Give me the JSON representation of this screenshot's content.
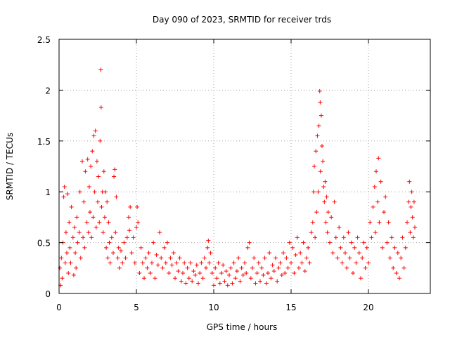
{
  "chart_data": {
    "type": "scatter",
    "title": "Day 090 of 2023, SRMTID for receiver trds",
    "xlabel": "GPS time / hours",
    "ylabel": "SRMTID / TECUs",
    "xlim": [
      0,
      24
    ],
    "ylim": [
      0,
      2.5
    ],
    "xticks": [
      0,
      5,
      10,
      15,
      20
    ],
    "xtick_labels": [
      "0",
      "5",
      "10",
      "15",
      "20"
    ],
    "yticks": [
      0,
      0.5,
      1,
      1.5,
      2,
      2.5
    ],
    "ytick_labels": [
      "0",
      "0.5",
      "1",
      "1.5",
      "2",
      "2.5"
    ],
    "grid": true,
    "marker": "+",
    "color": "#ff0000",
    "series": [
      {
        "name": "SRMTID",
        "points": [
          [
            0.05,
            0.25
          ],
          [
            0.1,
            0.08
          ],
          [
            0.15,
            0.35
          ],
          [
            0.2,
            0.15
          ],
          [
            0.25,
            0.5
          ],
          [
            0.3,
            0.95
          ],
          [
            0.35,
            1.05
          ],
          [
            0.4,
            0.3
          ],
          [
            0.45,
            0.6
          ],
          [
            0.5,
            0.4
          ],
          [
            0.55,
            0.98
          ],
          [
            0.6,
            0.2
          ],
          [
            0.65,
            0.7
          ],
          [
            0.7,
            0.45
          ],
          [
            0.75,
            0.3
          ],
          [
            0.8,
            0.85
          ],
          [
            0.9,
            0.55
          ],
          [
            0.95,
            0.18
          ],
          [
            1.0,
            0.65
          ],
          [
            1.05,
            0.4
          ],
          [
            1.1,
            0.25
          ],
          [
            1.15,
            0.75
          ],
          [
            1.2,
            0.5
          ],
          [
            1.3,
            0.6
          ],
          [
            1.35,
            1.0
          ],
          [
            1.4,
            0.35
          ],
          [
            1.5,
            1.3
          ],
          [
            1.55,
            0.55
          ],
          [
            1.6,
            0.9
          ],
          [
            1.65,
            0.45
          ],
          [
            1.7,
            1.2
          ],
          [
            1.8,
            0.7
          ],
          [
            1.85,
            1.32
          ],
          [
            1.9,
            0.6
          ],
          [
            1.95,
            1.05
          ],
          [
            2.0,
            0.8
          ],
          [
            2.05,
            1.25
          ],
          [
            2.1,
            0.55
          ],
          [
            2.15,
            1.4
          ],
          [
            2.2,
            0.75
          ],
          [
            2.25,
            1.55
          ],
          [
            2.3,
            1.0
          ],
          [
            2.35,
            1.6
          ],
          [
            2.4,
            0.65
          ],
          [
            2.45,
            1.3
          ],
          [
            2.5,
            0.9
          ],
          [
            2.55,
            1.15
          ],
          [
            2.6,
            0.7
          ],
          [
            2.65,
            1.5
          ],
          [
            2.7,
            2.2
          ],
          [
            2.72,
            1.83
          ],
          [
            2.75,
            0.85
          ],
          [
            2.8,
            1.0
          ],
          [
            2.85,
            0.6
          ],
          [
            2.9,
            1.2
          ],
          [
            2.95,
            0.75
          ],
          [
            3.0,
            1.0
          ],
          [
            3.05,
            0.45
          ],
          [
            3.1,
            0.9
          ],
          [
            3.15,
            0.35
          ],
          [
            3.2,
            0.7
          ],
          [
            3.25,
            0.5
          ],
          [
            3.3,
            0.3
          ],
          [
            3.4,
            0.55
          ],
          [
            3.5,
            0.4
          ],
          [
            3.55,
            1.15
          ],
          [
            3.6,
            1.22
          ],
          [
            3.65,
            0.6
          ],
          [
            3.7,
            0.95
          ],
          [
            3.8,
            0.35
          ],
          [
            3.85,
            0.45
          ],
          [
            3.9,
            0.25
          ],
          [
            4.0,
            0.42
          ],
          [
            4.1,
            0.3
          ],
          [
            4.2,
            0.5
          ],
          [
            4.3,
            0.35
          ],
          [
            4.4,
            0.55
          ],
          [
            4.5,
            0.75
          ],
          [
            4.55,
            0.62
          ],
          [
            4.6,
            0.85
          ],
          [
            4.7,
            0.4
          ],
          [
            4.8,
            0.55
          ],
          [
            4.9,
            0.3
          ],
          [
            5.0,
            0.65
          ],
          [
            5.05,
            0.85
          ],
          [
            5.1,
            0.7
          ],
          [
            5.2,
            0.2
          ],
          [
            5.3,
            0.45
          ],
          [
            5.4,
            0.3
          ],
          [
            5.5,
            0.15
          ],
          [
            5.6,
            0.35
          ],
          [
            5.7,
            0.25
          ],
          [
            5.8,
            0.4
          ],
          [
            5.9,
            0.2
          ],
          [
            6.0,
            0.3
          ],
          [
            6.1,
            0.5
          ],
          [
            6.2,
            0.15
          ],
          [
            6.3,
            0.38
          ],
          [
            6.4,
            0.28
          ],
          [
            6.5,
            0.6
          ],
          [
            6.6,
            0.35
          ],
          [
            6.7,
            0.25
          ],
          [
            6.8,
            0.45
          ],
          [
            6.9,
            0.3
          ],
          [
            7.0,
            0.5
          ],
          [
            7.1,
            0.2
          ],
          [
            7.2,
            0.35
          ],
          [
            7.3,
            0.28
          ],
          [
            7.4,
            0.4
          ],
          [
            7.5,
            0.15
          ],
          [
            7.6,
            0.3
          ],
          [
            7.7,
            0.22
          ],
          [
            7.8,
            0.35
          ],
          [
            7.9,
            0.12
          ],
          [
            8.0,
            0.2
          ],
          [
            8.1,
            0.3
          ],
          [
            8.2,
            0.1
          ],
          [
            8.3,
            0.25
          ],
          [
            8.4,
            0.15
          ],
          [
            8.5,
            0.3
          ],
          [
            8.6,
            0.12
          ],
          [
            8.7,
            0.22
          ],
          [
            8.8,
            0.18
          ],
          [
            8.9,
            0.28
          ],
          [
            9.0,
            0.1
          ],
          [
            9.1,
            0.2
          ],
          [
            9.2,
            0.3
          ],
          [
            9.3,
            0.15
          ],
          [
            9.4,
            0.35
          ],
          [
            9.5,
            0.25
          ],
          [
            9.6,
            0.45
          ],
          [
            9.65,
            0.52
          ],
          [
            9.7,
            0.3
          ],
          [
            9.8,
            0.4
          ],
          [
            9.9,
            0.2
          ],
          [
            10.0,
            0.08
          ],
          [
            10.1,
            0.25
          ],
          [
            10.2,
            0.15
          ],
          [
            10.3,
            0.3
          ],
          [
            10.4,
            0.1
          ],
          [
            10.5,
            0.2
          ],
          [
            10.6,
            0.28
          ],
          [
            10.7,
            0.12
          ],
          [
            10.8,
            0.22
          ],
          [
            10.9,
            0.08
          ],
          [
            11.0,
            0.18
          ],
          [
            11.1,
            0.25
          ],
          [
            11.2,
            0.1
          ],
          [
            11.3,
            0.3
          ],
          [
            11.4,
            0.15
          ],
          [
            11.5,
            0.22
          ],
          [
            11.6,
            0.35
          ],
          [
            11.7,
            0.12
          ],
          [
            11.8,
            0.25
          ],
          [
            11.9,
            0.18
          ],
          [
            12.0,
            0.3
          ],
          [
            12.1,
            0.2
          ],
          [
            12.2,
            0.45
          ],
          [
            12.3,
            0.5
          ],
          [
            12.4,
            0.15
          ],
          [
            12.5,
            0.25
          ],
          [
            12.6,
            0.35
          ],
          [
            12.7,
            0.1
          ],
          [
            12.8,
            0.2
          ],
          [
            12.9,
            0.3
          ],
          [
            13.0,
            0.12
          ],
          [
            13.1,
            0.25
          ],
          [
            13.2,
            0.18
          ],
          [
            13.3,
            0.35
          ],
          [
            13.4,
            0.1
          ],
          [
            13.5,
            0.2
          ],
          [
            13.6,
            0.4
          ],
          [
            13.7,
            0.15
          ],
          [
            13.8,
            0.28
          ],
          [
            13.9,
            0.22
          ],
          [
            14.0,
            0.35
          ],
          [
            14.1,
            0.12
          ],
          [
            14.2,
            0.25
          ],
          [
            14.3,
            0.3
          ],
          [
            14.4,
            0.18
          ],
          [
            14.5,
            0.4
          ],
          [
            14.6,
            0.2
          ],
          [
            14.7,
            0.35
          ],
          [
            14.8,
            0.25
          ],
          [
            14.9,
            0.5
          ],
          [
            15.0,
            0.3
          ],
          [
            15.1,
            0.45
          ],
          [
            15.2,
            0.2
          ],
          [
            15.3,
            0.38
          ],
          [
            15.4,
            0.55
          ],
          [
            15.5,
            0.25
          ],
          [
            15.6,
            0.4
          ],
          [
            15.7,
            0.3
          ],
          [
            15.8,
            0.5
          ],
          [
            15.9,
            0.22
          ],
          [
            16.0,
            0.35
          ],
          [
            16.1,
            0.45
          ],
          [
            16.2,
            0.3
          ],
          [
            16.3,
            0.6
          ],
          [
            16.4,
            0.7
          ],
          [
            16.45,
            1.0
          ],
          [
            16.5,
            1.25
          ],
          [
            16.55,
            0.55
          ],
          [
            16.6,
            1.4
          ],
          [
            16.65,
            0.8
          ],
          [
            16.7,
            1.55
          ],
          [
            16.75,
            1.0
          ],
          [
            16.8,
            1.65
          ],
          [
            16.85,
            1.99
          ],
          [
            16.88,
            1.88
          ],
          [
            16.9,
            1.2
          ],
          [
            16.95,
            1.75
          ],
          [
            17.0,
            1.45
          ],
          [
            17.05,
            1.3
          ],
          [
            17.1,
            1.05
          ],
          [
            17.15,
            0.9
          ],
          [
            17.2,
            1.1
          ],
          [
            17.25,
            0.7
          ],
          [
            17.3,
            0.95
          ],
          [
            17.35,
            0.6
          ],
          [
            17.4,
            0.8
          ],
          [
            17.5,
            0.5
          ],
          [
            17.6,
            0.75
          ],
          [
            17.7,
            0.4
          ],
          [
            17.8,
            0.9
          ],
          [
            17.9,
            0.55
          ],
          [
            18.0,
            0.35
          ],
          [
            18.1,
            0.65
          ],
          [
            18.2,
            0.45
          ],
          [
            18.3,
            0.3
          ],
          [
            18.4,
            0.55
          ],
          [
            18.5,
            0.4
          ],
          [
            18.6,
            0.25
          ],
          [
            18.7,
            0.6
          ],
          [
            18.8,
            0.35
          ],
          [
            18.9,
            0.5
          ],
          [
            19.0,
            0.2
          ],
          [
            19.1,
            0.45
          ],
          [
            19.2,
            0.3
          ],
          [
            19.3,
            0.55
          ],
          [
            19.4,
            0.4
          ],
          [
            19.5,
            0.15
          ],
          [
            19.6,
            0.35
          ],
          [
            19.7,
            0.5
          ],
          [
            19.8,
            0.25
          ],
          [
            19.9,
            0.45
          ],
          [
            20.0,
            0.3
          ],
          [
            20.1,
            0.7
          ],
          [
            20.2,
            0.55
          ],
          [
            20.3,
            0.85
          ],
          [
            20.4,
            1.05
          ],
          [
            20.45,
            0.6
          ],
          [
            20.5,
            1.2
          ],
          [
            20.6,
            0.9
          ],
          [
            20.65,
            1.33
          ],
          [
            20.7,
            0.7
          ],
          [
            20.8,
            1.1
          ],
          [
            20.9,
            0.45
          ],
          [
            21.0,
            0.8
          ],
          [
            21.1,
            0.95
          ],
          [
            21.2,
            0.5
          ],
          [
            21.3,
            0.7
          ],
          [
            21.4,
            0.35
          ],
          [
            21.5,
            0.55
          ],
          [
            21.6,
            0.25
          ],
          [
            21.7,
            0.45
          ],
          [
            21.8,
            0.2
          ],
          [
            21.9,
            0.4
          ],
          [
            22.0,
            0.15
          ],
          [
            22.1,
            0.35
          ],
          [
            22.2,
            0.55
          ],
          [
            22.3,
            0.25
          ],
          [
            22.4,
            0.45
          ],
          [
            22.5,
            0.7
          ],
          [
            22.6,
            0.9
          ],
          [
            22.65,
            1.1
          ],
          [
            22.7,
            0.6
          ],
          [
            22.75,
            0.85
          ],
          [
            22.8,
            1.0
          ],
          [
            22.85,
            0.75
          ],
          [
            22.9,
            0.55
          ],
          [
            22.95,
            0.9
          ],
          [
            23.0,
            0.65
          ]
        ]
      }
    ]
  }
}
